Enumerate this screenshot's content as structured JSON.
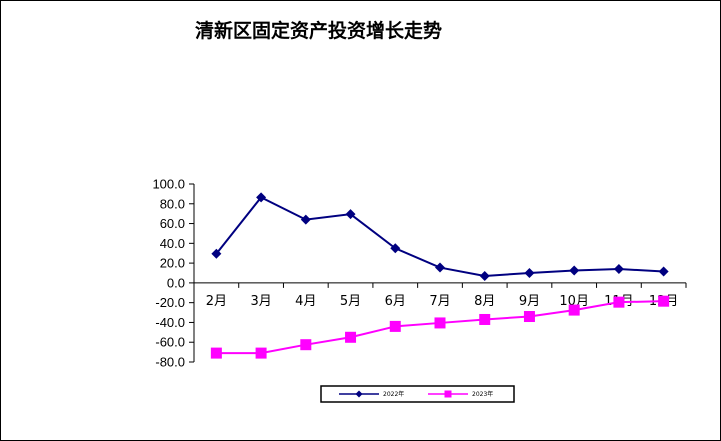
{
  "chart_data": {
    "type": "line",
    "title": "清新区固定资产投资增长走势",
    "xlabel": "",
    "ylabel": "",
    "categories": [
      "2月",
      "3月",
      "4月",
      "5月",
      "6月",
      "7月",
      "8月",
      "9月",
      "10月",
      "11月",
      "12月"
    ],
    "ylim": [
      -80,
      100
    ],
    "yticks": [
      "100.0",
      "80.0",
      "60.0",
      "40.0",
      "20.0",
      "0.0",
      "-20.0",
      "-40.0",
      "-60.0",
      "-80.0"
    ],
    "ytick_values": [
      100,
      80,
      60,
      40,
      20,
      0,
      -20,
      -40,
      -60,
      -80
    ],
    "grid": false,
    "legend_position": "bottom-center",
    "series": [
      {
        "name": "2022年",
        "color": "#000080",
        "marker": "diamond",
        "values": [
          29.5,
          86.5,
          64.0,
          69.5,
          35.0,
          15.5,
          7.0,
          10.0,
          12.5,
          14.0,
          11.5
        ]
      },
      {
        "name": "2023年",
        "color": "#FF00FF",
        "marker": "square",
        "values": [
          -71.0,
          -71.0,
          -62.5,
          -55.0,
          -44.0,
          -40.5,
          -37.0,
          -34.0,
          -27.5,
          -19.5,
          -18.5
        ]
      }
    ]
  }
}
